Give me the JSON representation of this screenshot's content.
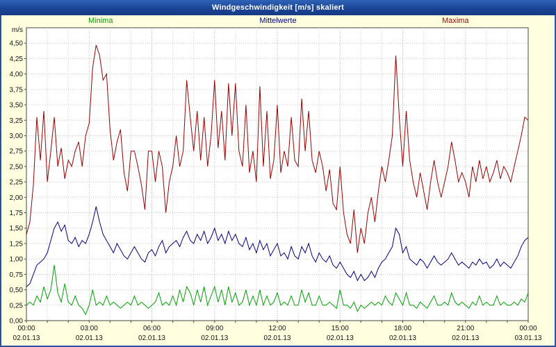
{
  "window": {
    "title": "Windgeschwindigkeit [m/s] skaliert"
  },
  "colors": {
    "frame_blue": "#27519f",
    "background": "#ffffe0",
    "plot_background": "#ffffff",
    "grid": "#c4c4c4",
    "minima": "#00a000",
    "mittelwerte": "#000080",
    "maxima": "#990000"
  },
  "chart_data": {
    "type": "line",
    "title": "Windgeschwindigkeit [m/s] skaliert",
    "xlabel": "",
    "ylabel": "m/s",
    "ylim": [
      0,
      4.5
    ],
    "x_range": [
      "00:00 02.01.13",
      "00:00 03.01.13"
    ],
    "grid": true,
    "legend_position": "top",
    "x_step_minutes": 10,
    "y_ticks": [
      {
        "v": 4.5,
        "label": "4,50"
      },
      {
        "v": 4.25,
        "label": "4,25"
      },
      {
        "v": 4.0,
        "label": "4,00"
      },
      {
        "v": 3.75,
        "label": "3,75"
      },
      {
        "v": 3.5,
        "label": "3,50"
      },
      {
        "v": 3.25,
        "label": "3,25"
      },
      {
        "v": 3.0,
        "label": "3,00"
      },
      {
        "v": 2.75,
        "label": "2,75"
      },
      {
        "v": 2.5,
        "label": "2,50"
      },
      {
        "v": 2.25,
        "label": "2,25"
      },
      {
        "v": 2.0,
        "label": "2,00"
      },
      {
        "v": 1.75,
        "label": "1,75"
      },
      {
        "v": 1.5,
        "label": "1,50"
      },
      {
        "v": 1.25,
        "label": "1,25"
      },
      {
        "v": 1.0,
        "label": "1,00"
      },
      {
        "v": 0.75,
        "label": "0,75"
      },
      {
        "v": 0.5,
        "label": "0,50"
      },
      {
        "v": 0.25,
        "label": "0,25"
      },
      {
        "v": 0.0,
        "label": "0,00"
      }
    ],
    "x_ticks": [
      {
        "t": 0,
        "time": "00:00",
        "date": "02.01.13"
      },
      {
        "t": 180,
        "time": "03:00",
        "date": "02.01.13"
      },
      {
        "t": 360,
        "time": "06:00",
        "date": "02.01.13"
      },
      {
        "t": 540,
        "time": "09:00",
        "date": "02.01.13"
      },
      {
        "t": 720,
        "time": "12:00",
        "date": "02.01.13"
      },
      {
        "t": 900,
        "time": "15:00",
        "date": "02.01.13"
      },
      {
        "t": 1080,
        "time": "18:00",
        "date": "02.01.13"
      },
      {
        "t": 1260,
        "time": "21:00",
        "date": "02.01.13"
      },
      {
        "t": 1440,
        "time": "00:00",
        "date": "03.01.13"
      }
    ],
    "series": [
      {
        "name": "Minima",
        "color": "#00a000",
        "values": [
          0.25,
          0.3,
          0.25,
          0.4,
          0.3,
          0.55,
          0.35,
          0.5,
          0.9,
          0.45,
          0.3,
          0.6,
          0.3,
          0.25,
          0.4,
          0.25,
          0.2,
          0.1,
          0.25,
          0.5,
          0.25,
          0.3,
          0.25,
          0.4,
          0.25,
          0.3,
          0.25,
          0.2,
          0.25,
          0.3,
          0.25,
          0.4,
          0.25,
          0.3,
          0.25,
          0.2,
          0.25,
          0.3,
          0.45,
          0.25,
          0.3,
          0.25,
          0.4,
          0.25,
          0.5,
          0.3,
          0.55,
          0.45,
          0.25,
          0.5,
          0.3,
          0.55,
          0.25,
          0.4,
          0.55,
          0.3,
          0.5,
          0.25,
          0.55,
          0.3,
          0.45,
          0.25,
          0.3,
          0.5,
          0.25,
          0.4,
          0.25,
          0.5,
          0.25,
          0.4,
          0.25,
          0.3,
          0.45,
          0.25,
          0.3,
          0.25,
          0.4,
          0.25,
          0.25,
          0.5,
          0.3,
          0.45,
          0.25,
          0.25,
          0.4,
          0.25,
          0.25,
          0.3,
          0.25,
          0.2,
          0.5,
          0.25,
          0.25,
          0.2,
          0.3,
          0.15,
          0.25,
          0.2,
          0.25,
          0.3,
          0.25,
          0.3,
          0.25,
          0.4,
          0.3,
          0.25,
          0.45,
          0.35,
          0.25,
          0.45,
          0.25,
          0.25,
          0.2,
          0.3,
          0.25,
          0.2,
          0.3,
          0.4,
          0.25,
          0.25,
          0.3,
          0.25,
          0.45,
          0.3,
          0.25,
          0.3,
          0.25,
          0.2,
          0.3,
          0.25,
          0.4,
          0.25,
          0.3,
          0.25,
          0.25,
          0.4,
          0.25,
          0.3,
          0.25,
          0.25,
          0.3,
          0.25,
          0.35,
          0.3,
          0.45
        ]
      },
      {
        "name": "Mittelwerte",
        "color": "#000080",
        "values": [
          0.55,
          0.6,
          0.75,
          0.9,
          0.95,
          1.0,
          1.1,
          1.3,
          1.5,
          1.6,
          1.45,
          1.55,
          1.3,
          1.25,
          1.35,
          1.2,
          1.3,
          1.25,
          1.4,
          1.6,
          1.85,
          1.6,
          1.4,
          1.3,
          1.2,
          1.1,
          1.25,
          1.15,
          1.05,
          1.0,
          1.1,
          1.2,
          1.1,
          1.0,
          0.95,
          1.1,
          1.15,
          1.05,
          1.2,
          1.3,
          1.1,
          1.2,
          1.25,
          1.3,
          1.2,
          1.35,
          1.45,
          1.3,
          1.25,
          1.4,
          1.3,
          1.45,
          1.25,
          1.35,
          1.5,
          1.3,
          1.4,
          1.25,
          1.45,
          1.3,
          1.4,
          1.25,
          1.2,
          1.35,
          1.15,
          1.25,
          1.1,
          1.3,
          1.15,
          1.25,
          1.05,
          1.15,
          1.25,
          1.05,
          1.1,
          1.0,
          1.2,
          1.05,
          1.0,
          1.2,
          1.1,
          1.25,
          1.05,
          0.95,
          1.1,
          1.0,
          0.95,
          1.05,
          0.9,
          0.85,
          0.95,
          0.85,
          0.75,
          0.7,
          0.8,
          0.65,
          0.75,
          0.65,
          0.7,
          0.8,
          0.7,
          0.85,
          0.95,
          1.0,
          1.1,
          1.2,
          1.5,
          1.4,
          1.1,
          1.2,
          1.0,
          0.95,
          0.9,
          1.0,
          0.95,
          0.85,
          0.95,
          1.05,
          0.95,
          0.9,
          0.95,
          1.0,
          1.1,
          1.0,
          0.9,
          0.95,
          0.9,
          0.85,
          0.95,
          0.9,
          1.0,
          0.92,
          0.95,
          0.85,
          0.9,
          1.0,
          0.88,
          0.95,
          0.9,
          0.85,
          0.95,
          1.05,
          1.2,
          1.3,
          1.35
        ]
      },
      {
        "name": "Maxima",
        "color": "#990000",
        "values": [
          1.4,
          1.6,
          2.2,
          3.3,
          2.6,
          3.4,
          2.25,
          2.75,
          3.3,
          2.5,
          2.8,
          2.3,
          2.6,
          2.5,
          2.75,
          2.9,
          2.5,
          3.0,
          3.2,
          4.1,
          4.47,
          4.3,
          3.9,
          4.0,
          3.1,
          2.6,
          2.9,
          3.1,
          2.4,
          2.1,
          2.75,
          2.75,
          2.5,
          2.2,
          1.8,
          2.75,
          2.75,
          2.25,
          2.75,
          2.5,
          1.75,
          2.25,
          2.5,
          3.0,
          2.5,
          2.75,
          3.9,
          3.3,
          2.75,
          3.4,
          2.6,
          3.3,
          2.5,
          3.0,
          3.9,
          2.8,
          3.4,
          2.6,
          3.85,
          3.0,
          3.85,
          2.75,
          2.5,
          3.5,
          2.4,
          2.75,
          2.25,
          3.8,
          2.5,
          3.4,
          2.3,
          2.6,
          3.5,
          2.4,
          2.75,
          2.5,
          3.3,
          2.6,
          2.5,
          3.6,
          2.75,
          3.4,
          2.6,
          2.4,
          2.75,
          2.5,
          2.1,
          2.45,
          1.9,
          1.8,
          2.5,
          1.75,
          1.4,
          1.25,
          1.8,
          1.1,
          1.5,
          1.25,
          1.75,
          2.0,
          1.6,
          2.1,
          2.5,
          2.25,
          2.6,
          3.0,
          4.3,
          3.3,
          2.5,
          3.4,
          2.6,
          2.25,
          2.0,
          2.4,
          2.1,
          1.8,
          2.25,
          2.6,
          2.25,
          2.0,
          2.25,
          2.5,
          2.9,
          2.6,
          2.25,
          2.4,
          2.25,
          2.0,
          2.5,
          2.25,
          2.6,
          2.3,
          2.5,
          2.25,
          2.4,
          2.6,
          2.3,
          2.5,
          2.4,
          2.25,
          2.5,
          2.75,
          3.0,
          3.3,
          3.25
        ]
      }
    ]
  }
}
